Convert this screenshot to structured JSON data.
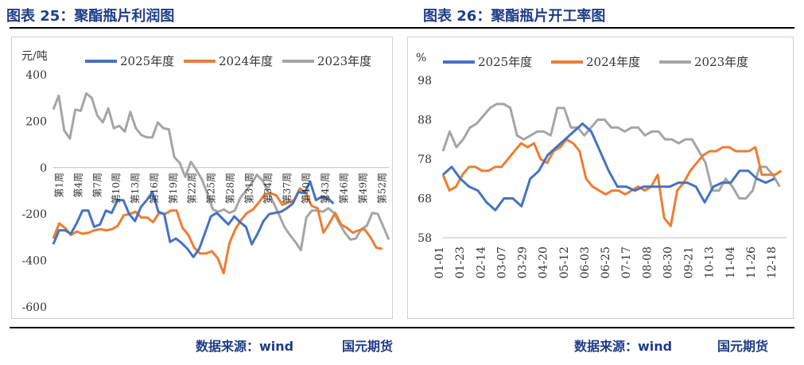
{
  "titles": {
    "left": "图表 25：聚酯瓶片利润图",
    "right": "图表 26：聚酯瓶片开工率图"
  },
  "footer": {
    "source_left": "数据来源：wind",
    "brand_left": "国元期货",
    "source_right": "数据来源：wind",
    "brand_right": "国元期货"
  },
  "colors": {
    "y2025": "#4472c4",
    "y2024": "#ed7d31",
    "y2023": "#a5a5a5"
  },
  "chart_data": [
    {
      "type": "line",
      "title": "聚酯瓶片利润图",
      "ylabel": "元/吨",
      "ylim": [
        -600,
        400
      ],
      "yticks": [
        400,
        200,
        0,
        -200,
        -400,
        -600
      ],
      "xlabels": [
        "第1周",
        "第4周",
        "第7周",
        "第10周",
        "第13周",
        "第16周",
        "第19周",
        "第22周",
        "第25周",
        "第28周",
        "第31周",
        "第34周",
        "第37周",
        "第40周",
        "第43周",
        "第46周",
        "第49周",
        "第52周"
      ],
      "legend_position": "top",
      "series": [
        {
          "name": "2025年度",
          "color": "#4472c4",
          "values": [
            -330,
            -270,
            -270,
            -285,
            -240,
            -185,
            -185,
            -255,
            -245,
            -185,
            -195,
            -140,
            -140,
            -200,
            -230,
            -170,
            -140,
            -105,
            -190,
            -200,
            -320,
            -305,
            -325,
            -350,
            -385,
            -350,
            -280,
            -210,
            -195,
            -220,
            -245,
            -210,
            -235,
            -255,
            -330,
            -285,
            -230,
            -200,
            -195,
            -190,
            -175,
            -155,
            -105,
            -110,
            -60,
            -140,
            -125,
            -130,
            -155
          ]
        },
        {
          "name": "2024年度",
          "color": "#ed7d31",
          "values": [
            -305,
            -240,
            -260,
            -290,
            -275,
            -285,
            -280,
            -270,
            -265,
            -270,
            -265,
            -250,
            -205,
            -200,
            -190,
            -215,
            -215,
            -235,
            -195,
            -200,
            -185,
            -185,
            -260,
            -290,
            -345,
            -370,
            -370,
            -360,
            -390,
            -455,
            -325,
            -265,
            -225,
            -195,
            -180,
            -150,
            -115,
            -110,
            -120,
            -160,
            -150,
            -140,
            -90,
            -110,
            -165,
            -175,
            -280,
            -240,
            -195,
            -245,
            -260,
            -280,
            -270,
            -265,
            -300,
            -345,
            -350
          ]
        },
        {
          "name": "2023年度",
          "color": "#a5a5a5",
          "values": [
            250,
            310,
            160,
            125,
            250,
            245,
            320,
            300,
            225,
            195,
            255,
            170,
            180,
            155,
            240,
            170,
            140,
            130,
            130,
            195,
            170,
            165,
            45,
            20,
            -40,
            25,
            -10,
            -50,
            -110,
            -180,
            -190,
            -180,
            -195,
            -185,
            -130,
            -100,
            -70,
            -30,
            -55,
            -100,
            -150,
            -200,
            -255,
            -290,
            -320,
            -355,
            -215,
            -185,
            -185,
            -190,
            -175,
            -195,
            -240,
            -280,
            -310,
            -305,
            -265,
            -250,
            -195,
            -200,
            -255,
            -310
          ]
        }
      ]
    },
    {
      "type": "line",
      "title": "聚酯瓶片开工率图",
      "ylabel": "%",
      "ylim": [
        58,
        98
      ],
      "yticks": [
        98,
        88,
        78,
        68,
        58
      ],
      "xlabels": [
        "01-01",
        "01-23",
        "02-14",
        "03-07",
        "03-29",
        "04-20",
        "05-12",
        "06-03",
        "06-25",
        "07-17",
        "08-08",
        "08-30",
        "09-21",
        "10-13",
        "11-04",
        "11-26",
        "12-18"
      ],
      "legend_position": "top",
      "series": [
        {
          "name": "2025年度",
          "color": "#4472c4",
          "values": [
            74,
            76,
            73,
            71,
            70,
            67,
            65,
            68,
            68,
            66,
            73,
            75,
            79,
            81,
            83,
            85,
            87,
            85,
            80,
            75,
            71,
            71,
            70,
            71,
            71,
            71,
            71,
            72,
            72,
            71,
            67,
            71,
            72,
            72,
            75,
            75,
            73,
            72,
            73
          ]
        },
        {
          "name": "2024年度",
          "color": "#ed7d31",
          "values": [
            74,
            70,
            71,
            74,
            76,
            76,
            75,
            75,
            76,
            76,
            78,
            80,
            82,
            81,
            82,
            78,
            77,
            80,
            81,
            83,
            82,
            80,
            73,
            71,
            70,
            69,
            70,
            70,
            69,
            70,
            71,
            70,
            71,
            74,
            63,
            61,
            70,
            72,
            75,
            77,
            79,
            80,
            80,
            81,
            81,
            80,
            80,
            80,
            81,
            74,
            74,
            74,
            75
          ]
        },
        {
          "name": "2023年度",
          "color": "#a5a5a5",
          "values": [
            80,
            85,
            81,
            83,
            86,
            87,
            89,
            91,
            92,
            92,
            91,
            84,
            83,
            84,
            85,
            85,
            84,
            91,
            91,
            86,
            86,
            84,
            86,
            88,
            88,
            86,
            86,
            85,
            86,
            86,
            84,
            85,
            85,
            83,
            83,
            82,
            83,
            83,
            80,
            77,
            70,
            70,
            73,
            71,
            68,
            68,
            70,
            76,
            76,
            74,
            71
          ]
        }
      ]
    }
  ]
}
